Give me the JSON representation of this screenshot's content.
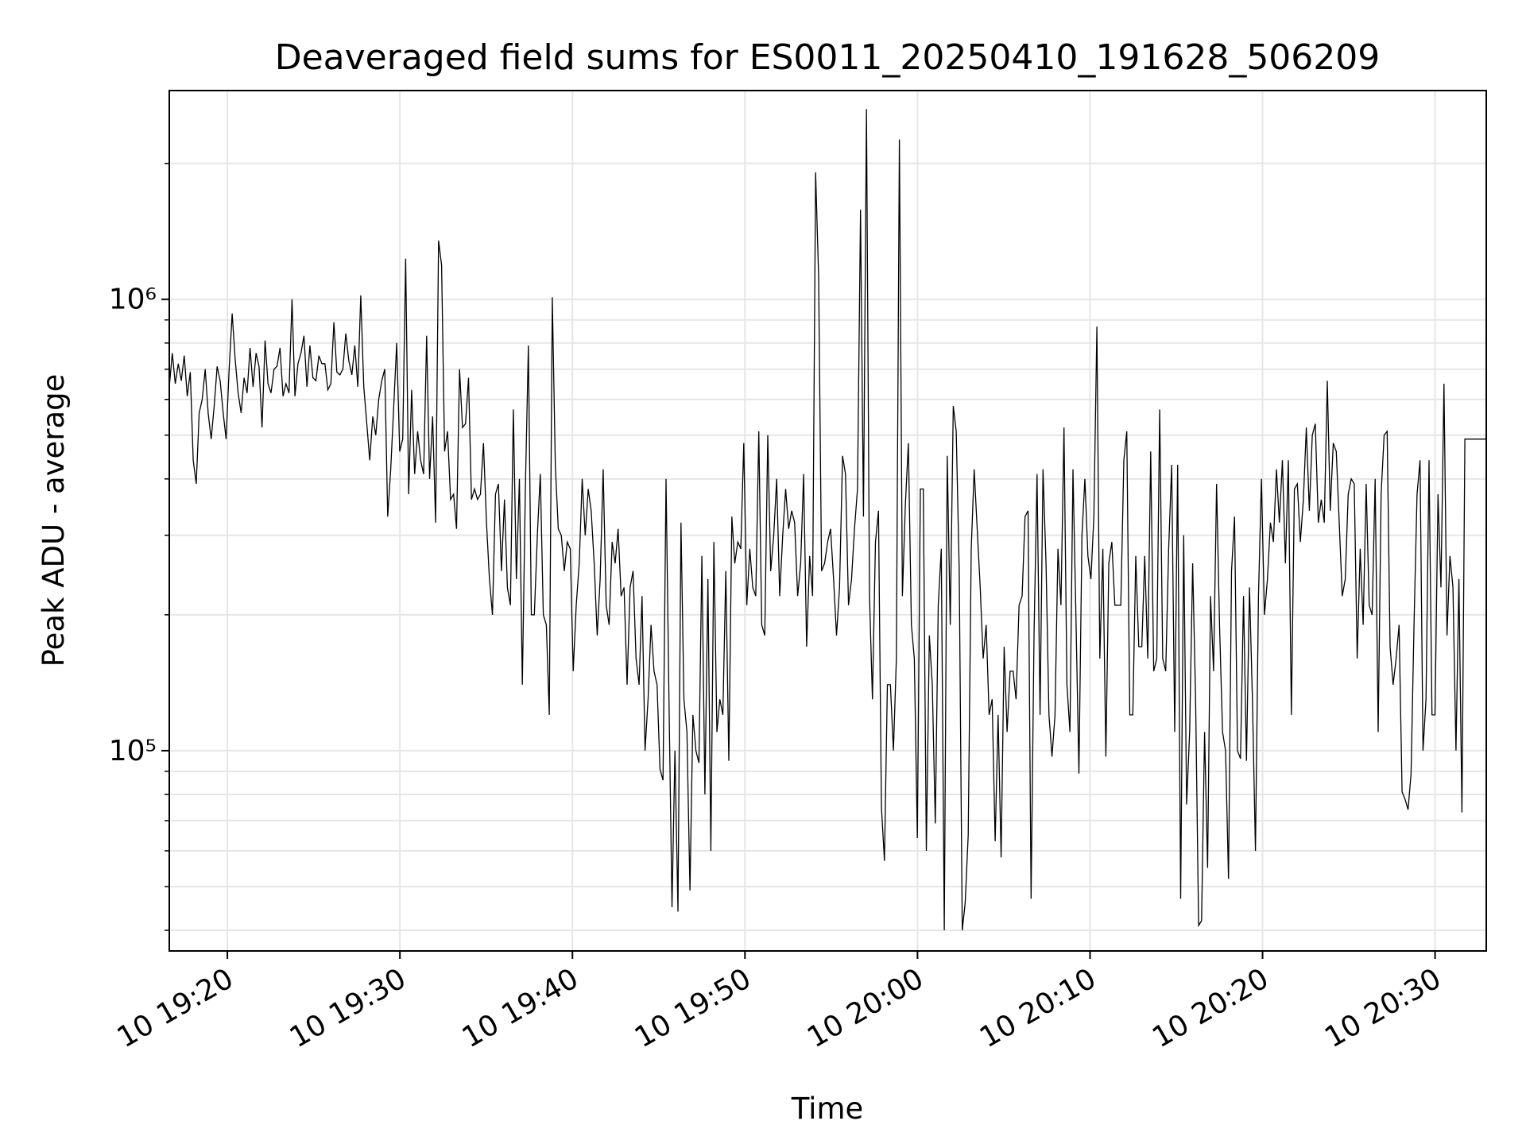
{
  "chart_data": {
    "type": "line",
    "title": "Deaveraged field sums for ES0011_20250410_191628_506209",
    "xlabel": "Time",
    "ylabel": "Peak ADU - average",
    "y_scale": "log",
    "y_tick_labels": [
      {
        "value": 100000,
        "label": "10⁵"
      },
      {
        "value": 1000000,
        "label": "10⁶"
      }
    ],
    "x_tick_labels": [
      "10 19:20",
      "10 19:30",
      "10 19:40",
      "10 19:50",
      "10 20:00",
      "10 20:10",
      "10 20:20",
      "10 20:30"
    ],
    "x_ticks": [
      "2025-04-10 19:20",
      "2025-04-10 19:30",
      "2025-04-10 19:40",
      "2025-04-10 19:50",
      "2025-04-10 20:00",
      "2025-04-10 20:10",
      "2025-04-10 20:20",
      "2025-04-10 20:30"
    ],
    "xlim": [
      "2025-04-10 19:16:38",
      "2025-04-10 20:32:58"
    ],
    "ylim": [
      36000,
      2900000
    ],
    "grid": true,
    "line_color": "#000000",
    "series": [
      {
        "x_start": "2025-04-10 19:16:38",
        "x_end": "2025-04-10 20:32:15",
        "values": [
          640000,
          760000,
          650000,
          720000,
          660000,
          750000,
          610000,
          690000,
          440000,
          390000,
          560000,
          600000,
          700000,
          560000,
          490000,
          580000,
          710000,
          660000,
          560000,
          490000,
          700000,
          930000,
          740000,
          620000,
          560000,
          670000,
          620000,
          780000,
          640000,
          760000,
          710000,
          520000,
          810000,
          650000,
          620000,
          700000,
          710000,
          780000,
          610000,
          650000,
          620000,
          1000000,
          610000,
          720000,
          760000,
          830000,
          640000,
          790000,
          670000,
          660000,
          750000,
          720000,
          720000,
          630000,
          650000,
          890000,
          690000,
          680000,
          700000,
          840000,
          730000,
          680000,
          790000,
          640000,
          1020000,
          640000,
          530000,
          440000,
          550000,
          500000,
          600000,
          660000,
          700000,
          330000,
          420000,
          580000,
          800000,
          460000,
          490000,
          1230000,
          370000,
          630000,
          410000,
          510000,
          440000,
          410000,
          830000,
          400000,
          550000,
          320000,
          1350000,
          1190000,
          460000,
          510000,
          360000,
          370000,
          310000,
          700000,
          520000,
          530000,
          670000,
          360000,
          380000,
          360000,
          370000,
          480000,
          320000,
          240000,
          200000,
          370000,
          390000,
          250000,
          360000,
          230000,
          210000,
          570000,
          240000,
          400000,
          140000,
          380000,
          790000,
          200000,
          200000,
          300000,
          410000,
          200000,
          190000,
          120000,
          1010000,
          430000,
          310000,
          300000,
          250000,
          290000,
          280000,
          150000,
          210000,
          260000,
          400000,
          300000,
          380000,
          340000,
          260000,
          180000,
          240000,
          420000,
          210000,
          190000,
          290000,
          260000,
          310000,
          220000,
          230000,
          140000,
          230000,
          250000,
          160000,
          140000,
          220000,
          100000,
          130000,
          190000,
          150000,
          140000,
          91000,
          86000,
          400000,
          130000,
          45000,
          100000,
          44000,
          320000,
          130000,
          110000,
          49000,
          120000,
          100000,
          94000,
          270000,
          80000,
          240000,
          60000,
          290000,
          110000,
          130000,
          120000,
          250000,
          95000,
          330000,
          260000,
          290000,
          280000,
          480000,
          210000,
          280000,
          230000,
          220000,
          510000,
          190000,
          180000,
          500000,
          250000,
          300000,
          400000,
          220000,
          300000,
          380000,
          310000,
          340000,
          320000,
          220000,
          260000,
          410000,
          170000,
          270000,
          220000,
          1910000,
          1120000,
          250000,
          260000,
          290000,
          310000,
          240000,
          180000,
          230000,
          450000,
          410000,
          210000,
          240000,
          310000,
          380000,
          1580000,
          330000,
          2640000,
          220000,
          130000,
          290000,
          340000,
          75000,
          57000,
          140000,
          140000,
          100000,
          160000,
          2260000,
          220000,
          350000,
          480000,
          190000,
          160000,
          64000,
          380000,
          380000,
          60000,
          180000,
          140000,
          69000,
          210000,
          280000,
          40000,
          450000,
          190000,
          580000,
          510000,
          250000,
          40000,
          46000,
          65000,
          280000,
          420000,
          310000,
          230000,
          160000,
          190000,
          120000,
          130000,
          63000,
          120000,
          58000,
          170000,
          110000,
          150000,
          150000,
          130000,
          210000,
          220000,
          330000,
          340000,
          47000,
          180000,
          410000,
          120000,
          420000,
          260000,
          120000,
          97000,
          120000,
          280000,
          210000,
          520000,
          140000,
          110000,
          420000,
          200000,
          89000,
          300000,
          400000,
          270000,
          240000,
          330000,
          870000,
          160000,
          280000,
          97000,
          260000,
          290000,
          210000,
          210000,
          210000,
          440000,
          510000,
          120000,
          120000,
          270000,
          170000,
          170000,
          270000,
          160000,
          460000,
          150000,
          160000,
          570000,
          160000,
          150000,
          280000,
          430000,
          110000,
          430000,
          47000,
          300000,
          76000,
          110000,
          260000,
          130000,
          41000,
          42000,
          110000,
          55000,
          220000,
          150000,
          390000,
          190000,
          110000,
          100000,
          52000,
          250000,
          330000,
          100000,
          96000,
          220000,
          95000,
          230000,
          130000,
          60000,
          220000,
          400000,
          200000,
          240000,
          320000,
          290000,
          420000,
          320000,
          440000,
          260000,
          440000,
          120000,
          380000,
          390000,
          290000,
          360000,
          520000,
          340000,
          500000,
          530000,
          320000,
          360000,
          320000,
          660000,
          340000,
          480000,
          460000,
          320000,
          220000,
          240000,
          370000,
          400000,
          390000,
          160000,
          280000,
          190000,
          390000,
          210000,
          200000,
          400000,
          110000,
          370000,
          500000,
          510000,
          170000,
          140000,
          160000,
          190000,
          81000,
          78000,
          74000,
          89000,
          190000,
          370000,
          440000,
          100000,
          130000,
          440000,
          120000,
          120000,
          370000,
          230000,
          650000,
          180000,
          270000,
          230000,
          100000,
          240000,
          73000,
          490000,
          490000,
          490000,
          490000
        ]
      }
    ]
  }
}
